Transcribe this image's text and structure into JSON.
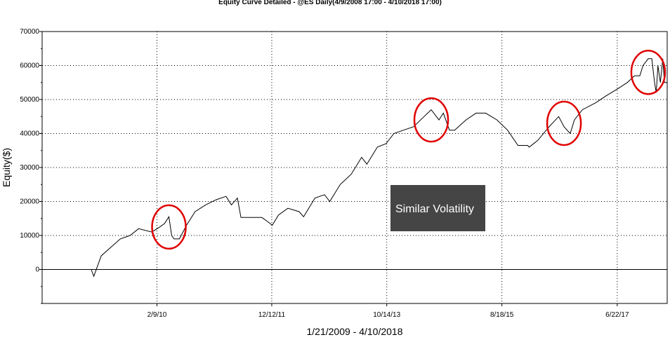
{
  "chart_data": {
    "type": "line",
    "title": "Equity Curve Detailed - @ES Daily(4/9/2008 17:00 - 4/10/2018 17:00)",
    "xlabel": "1/21/2009 - 4/10/2018",
    "ylabel": "Equity($)",
    "xlim": [
      "2008-04-09",
      "2018-04-10"
    ],
    "ylim": [
      -10000,
      70000
    ],
    "y_ticks": [
      0,
      10000,
      20000,
      30000,
      40000,
      50000,
      60000,
      70000
    ],
    "y_tick_labels": [
      "0",
      "10000",
      "20000",
      "30000",
      "40000",
      "50000",
      "60000",
      "70000"
    ],
    "x_ticks": [
      "2010-02-09",
      "2011-12-12",
      "2013-10-14",
      "2015-08-18",
      "2017-06-22"
    ],
    "x_tick_labels": [
      "2/9/10",
      "12/12/11",
      "10/14/13",
      "8/18/15",
      "6/22/17"
    ],
    "grid": true,
    "series": [
      {
        "color": "#000000",
        "x": [
          "2009-01-21",
          "2009-02-05",
          "2009-03-20",
          "2009-05-15",
          "2009-07-10",
          "2009-09-05",
          "2009-10-25",
          "2010-01-10",
          "2010-02-25",
          "2010-03-25",
          "2010-04-20",
          "2010-05-06",
          "2010-05-20",
          "2010-06-20",
          "2010-08-01",
          "2010-09-20",
          "2010-11-20",
          "2011-01-20",
          "2011-03-20",
          "2011-04-20",
          "2011-05-25",
          "2011-06-15",
          "2011-07-20",
          "2011-08-10",
          "2011-09-01",
          "2011-10-15",
          "2011-11-20",
          "2011-12-15",
          "2012-01-20",
          "2012-03-15",
          "2012-05-20",
          "2012-06-15",
          "2012-08-20",
          "2012-10-15",
          "2012-11-15",
          "2013-01-15",
          "2013-03-20",
          "2013-05-20",
          "2013-06-20",
          "2013-08-20",
          "2013-10-10",
          "2013-11-25",
          "2014-01-20",
          "2014-03-20",
          "2014-05-20",
          "2014-07-01",
          "2014-08-15",
          "2014-09-10",
          "2014-10-15",
          "2014-11-15",
          "2015-01-20",
          "2015-03-20",
          "2015-05-15",
          "2015-07-20",
          "2015-09-20",
          "2015-11-20",
          "2016-01-15",
          "2016-01-25",
          "2016-03-15",
          "2016-05-20",
          "2016-07-15",
          "2016-08-15",
          "2016-09-20",
          "2016-10-15",
          "2016-11-30",
          "2017-02-15",
          "2017-04-15",
          "2017-06-20",
          "2017-08-20",
          "2017-10-01",
          "2017-11-01",
          "2017-11-20",
          "2017-12-20",
          "2018-01-10",
          "2018-01-26",
          "2018-02-05",
          "2018-02-15",
          "2018-03-01",
          "2018-03-15",
          "2018-03-25",
          "2018-04-10"
        ],
        "y": [
          0,
          -2000,
          4000,
          6500,
          9000,
          10000,
          12000,
          11000,
          12500,
          13500,
          15500,
          10000,
          9000,
          9000,
          13000,
          17000,
          19000,
          20500,
          21500,
          19000,
          21000,
          15300,
          15300,
          15300,
          15300,
          15300,
          14000,
          13000,
          16000,
          18000,
          17000,
          15500,
          21000,
          22000,
          20000,
          25000,
          28000,
          33000,
          31000,
          36000,
          37000,
          40000,
          41000,
          42000,
          45000,
          47000,
          44000,
          46000,
          41000,
          41000,
          44000,
          46000,
          46000,
          44000,
          41000,
          36500,
          36500,
          36000,
          38000,
          42000,
          45000,
          42000,
          40000,
          44000,
          47000,
          49000,
          51000,
          53000,
          55000,
          57000,
          57000,
          60000,
          62000,
          62000,
          55000,
          52000,
          60000,
          55000,
          62000,
          55000,
          55000
        ]
      }
    ],
    "annotations": [
      "Similar Volatility"
    ],
    "highlighted_regions": [
      {
        "x": "2010-04-20",
        "y": 12500
      },
      {
        "x": "2014-07-01",
        "y": 44000
      },
      {
        "x": "2016-08-15",
        "y": 43000
      },
      {
        "x": "2017-12-20",
        "y": 58000
      }
    ]
  }
}
